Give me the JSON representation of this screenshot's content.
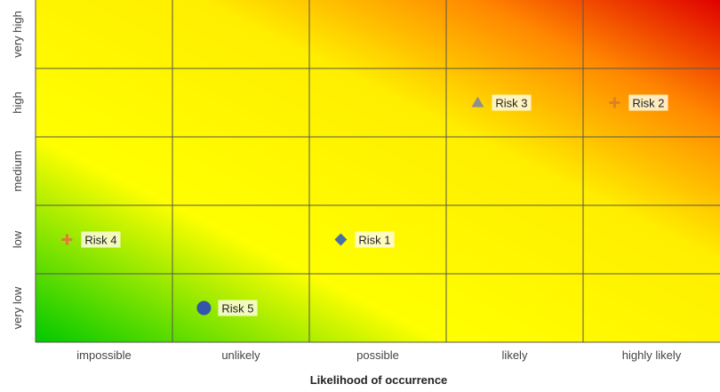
{
  "chart_data": {
    "type": "scatter",
    "title": "",
    "xlabel": "Likelihood of occurrence",
    "ylabel": "",
    "x_categories": [
      "impossible",
      "unlikely",
      "possible",
      "likely",
      "highly likely"
    ],
    "y_categories": [
      "very low",
      "low",
      "medium",
      "high",
      "very high"
    ],
    "grid": true,
    "background": "heatmap gradient green (bottom-left) to yellow to red (top-right)",
    "points": [
      {
        "label": "Risk 1",
        "x": "possible",
        "y": "low",
        "marker": "diamond",
        "color": "#4a6fa5"
      },
      {
        "label": "Risk 2",
        "x": "highly likely",
        "y": "high",
        "marker": "cross",
        "color": "#d9822b"
      },
      {
        "label": "Risk 3",
        "x": "likely",
        "y": "high",
        "marker": "triangle",
        "color": "#8f8f8f"
      },
      {
        "label": "Risk 4",
        "x": "impossible",
        "y": "low",
        "marker": "cross",
        "color": "#e07b39"
      },
      {
        "label": "Risk 5",
        "x": "unlikely",
        "y": "very low",
        "marker": "circle",
        "color": "#3355aa"
      }
    ]
  }
}
